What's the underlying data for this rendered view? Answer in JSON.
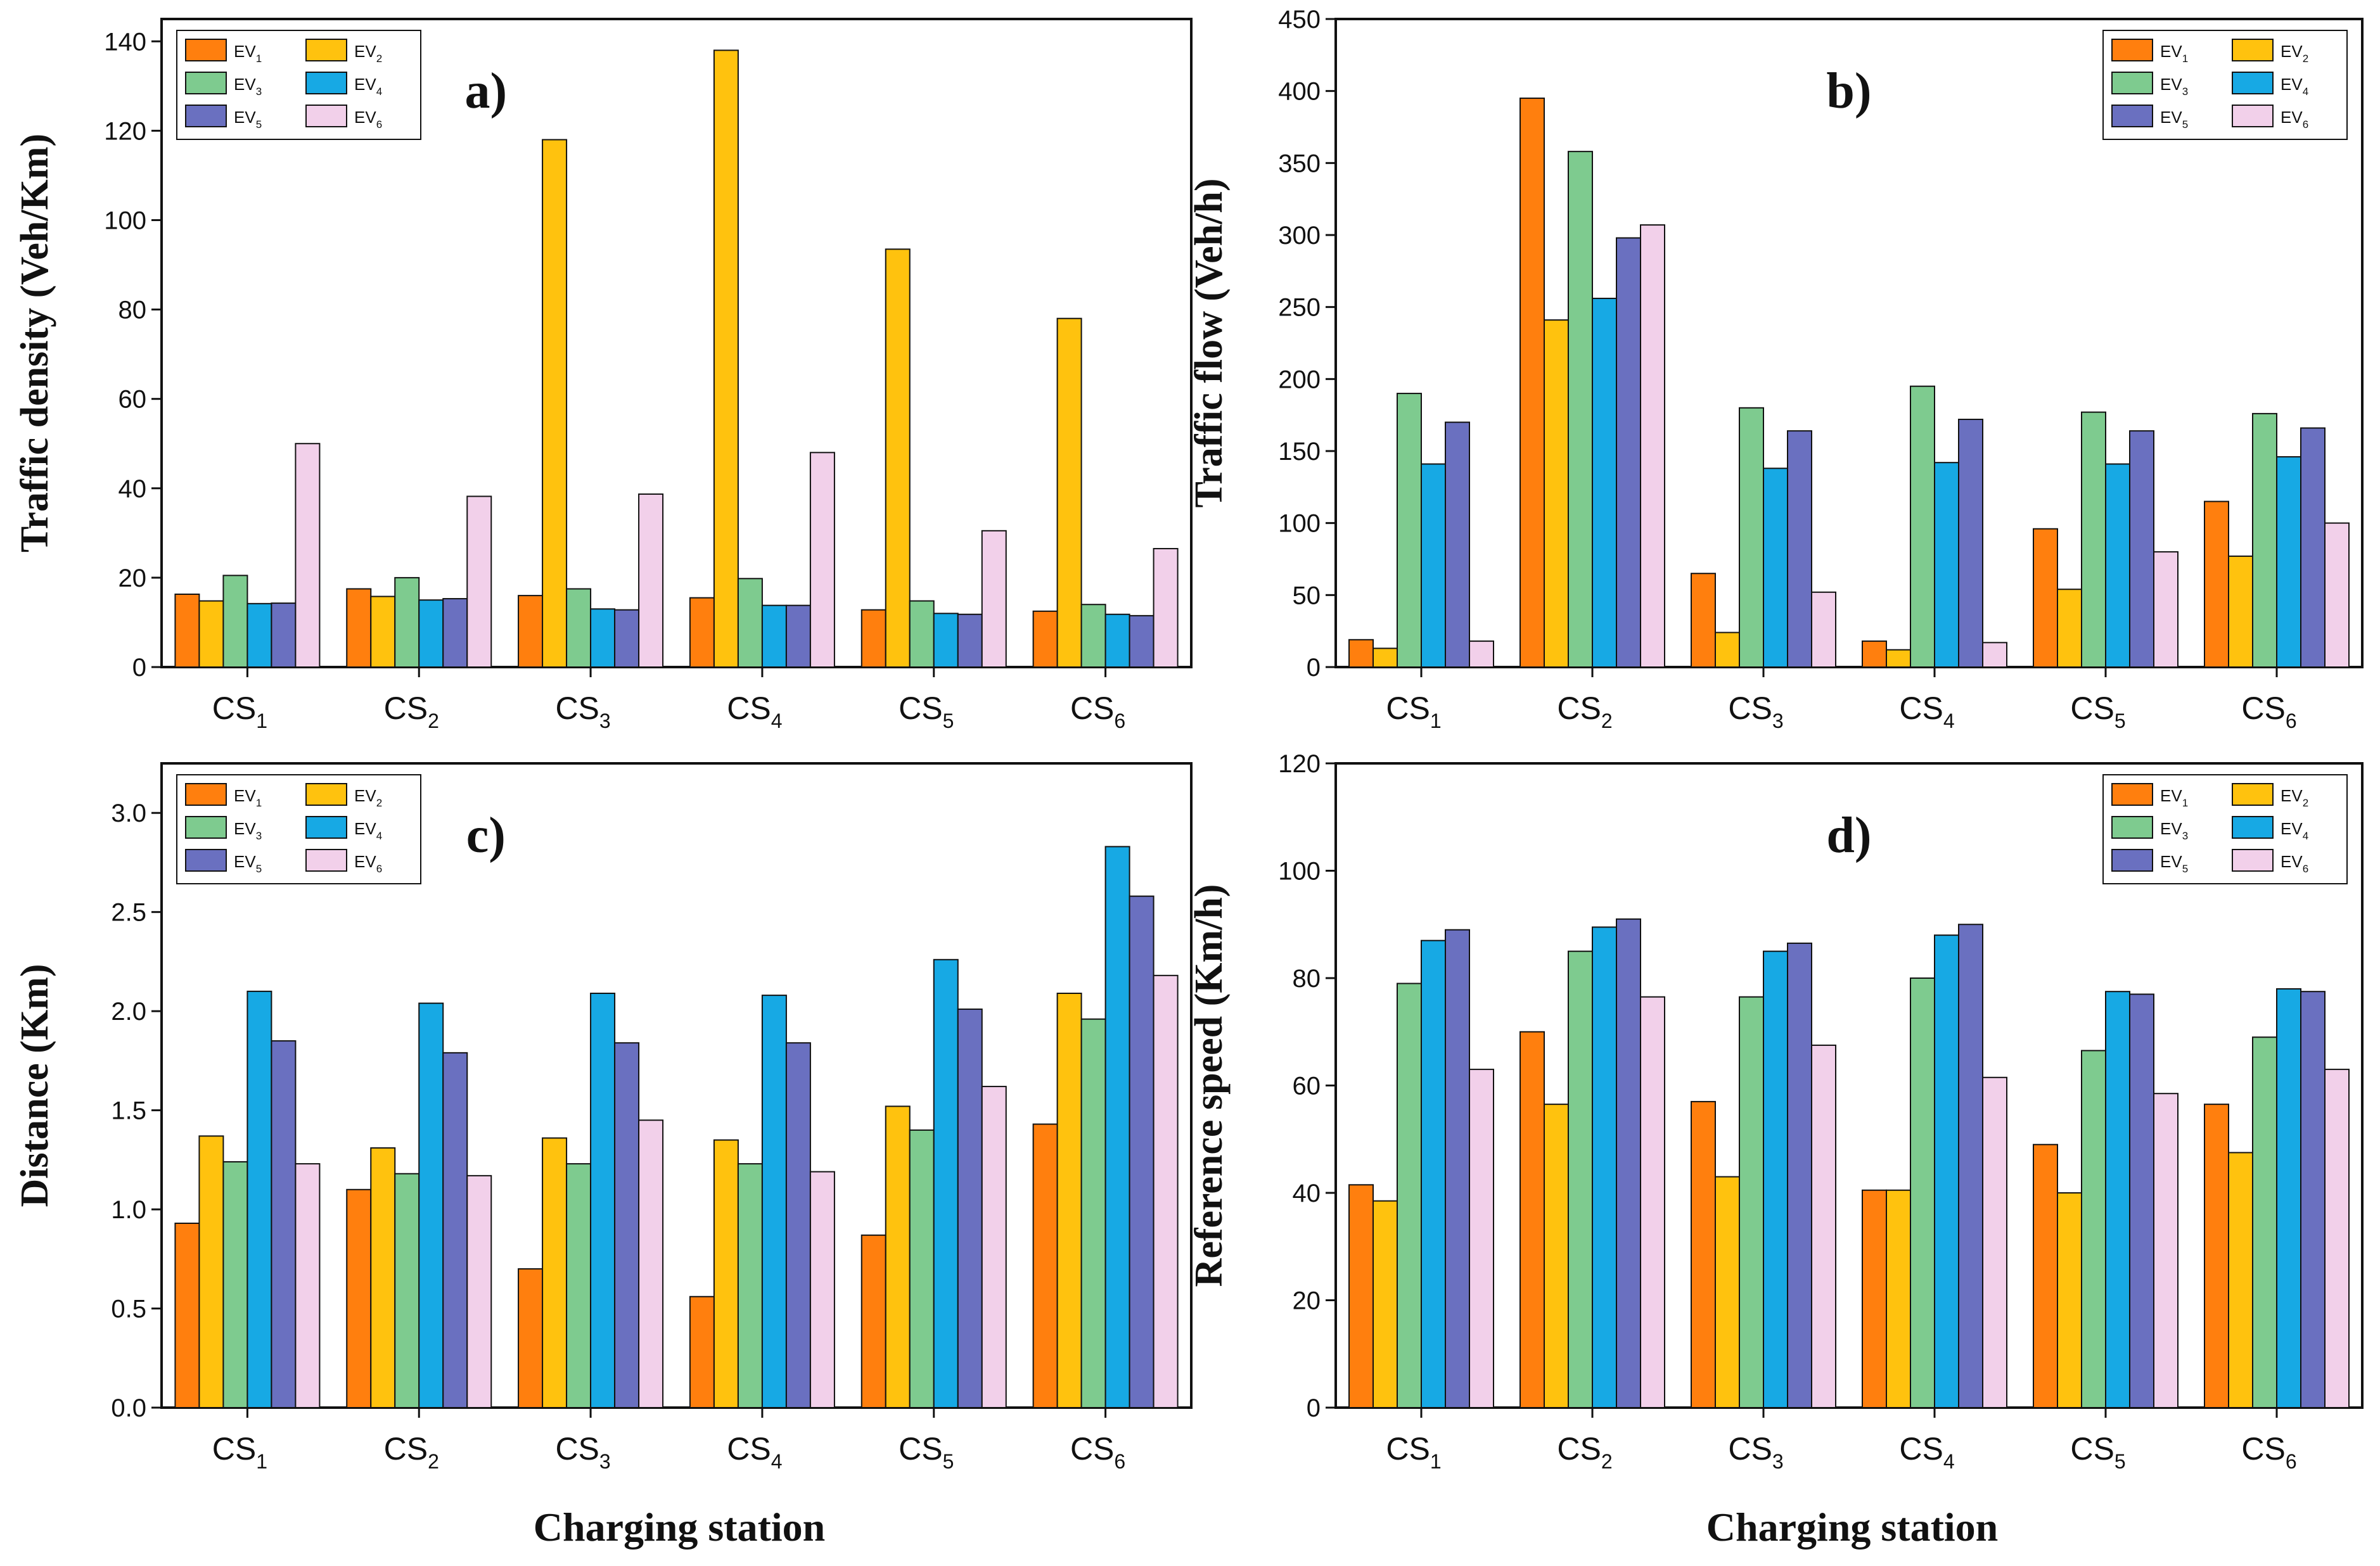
{
  "colors": {
    "EV1": "#ff7f0e",
    "EV2": "#ffc20e",
    "EV3": "#7ecb8f",
    "EV4": "#17a9e4",
    "EV5": "#6a70c0",
    "EV6": "#f2d0ea"
  },
  "x_axis_title": "Charging station",
  "chart_data": [
    {
      "type": "bar",
      "panel": "a)",
      "ylabel": "Traffic density (Veh/Km)",
      "ylim": [
        0,
        145
      ],
      "yticks": [
        0,
        20,
        40,
        60,
        80,
        100,
        120,
        140
      ],
      "ytick_labels": [
        "0",
        "20",
        "40",
        "60",
        "80",
        "100",
        "120",
        "140"
      ],
      "legend_position": "top-left",
      "categories": [
        {
          "base": "CS",
          "sub": "1"
        },
        {
          "base": "CS",
          "sub": "2"
        },
        {
          "base": "CS",
          "sub": "3"
        },
        {
          "base": "CS",
          "sub": "4"
        },
        {
          "base": "CS",
          "sub": "5"
        },
        {
          "base": "CS",
          "sub": "6"
        }
      ],
      "series": [
        {
          "key": "EV1",
          "base": "EV",
          "sub": "1",
          "values": [
            16.3,
            17.5,
            16.0,
            15.5,
            12.8,
            12.5
          ]
        },
        {
          "key": "EV2",
          "base": "EV",
          "sub": "2",
          "values": [
            14.8,
            15.8,
            118.0,
            138.0,
            93.5,
            78.0
          ]
        },
        {
          "key": "EV3",
          "base": "EV",
          "sub": "3",
          "values": [
            20.5,
            20.0,
            17.5,
            19.8,
            14.8,
            14.0
          ]
        },
        {
          "key": "EV4",
          "base": "EV",
          "sub": "4",
          "values": [
            14.2,
            15.0,
            13.0,
            13.8,
            12.0,
            11.8
          ]
        },
        {
          "key": "EV5",
          "base": "EV",
          "sub": "5",
          "values": [
            14.3,
            15.3,
            12.8,
            13.8,
            11.8,
            11.5
          ]
        },
        {
          "key": "EV6",
          "base": "EV",
          "sub": "6",
          "values": [
            50.0,
            38.2,
            38.7,
            48.0,
            30.5,
            26.5
          ]
        }
      ]
    },
    {
      "type": "bar",
      "panel": "b)",
      "ylabel": "Traffic flow (Veh/h)",
      "ylim": [
        0,
        450
      ],
      "yticks": [
        0,
        50,
        100,
        150,
        200,
        250,
        300,
        350,
        400,
        450
      ],
      "ytick_labels": [
        "0",
        "50",
        "100",
        "150",
        "200",
        "250",
        "300",
        "350",
        "400",
        "450"
      ],
      "legend_position": "top-right",
      "categories": [
        {
          "base": "CS",
          "sub": "1"
        },
        {
          "base": "CS",
          "sub": "2"
        },
        {
          "base": "CS",
          "sub": "3"
        },
        {
          "base": "CS",
          "sub": "4"
        },
        {
          "base": "CS",
          "sub": "5"
        },
        {
          "base": "CS",
          "sub": "6"
        }
      ],
      "series": [
        {
          "key": "EV1",
          "base": "EV",
          "sub": "1",
          "values": [
            19,
            395,
            65,
            18,
            96,
            115
          ]
        },
        {
          "key": "EV2",
          "base": "EV",
          "sub": "2",
          "values": [
            13,
            241,
            24,
            12,
            54,
            77
          ]
        },
        {
          "key": "EV3",
          "base": "EV",
          "sub": "3",
          "values": [
            190,
            358,
            180,
            195,
            177,
            176
          ]
        },
        {
          "key": "EV4",
          "base": "EV",
          "sub": "4",
          "values": [
            141,
            256,
            138,
            142,
            141,
            146
          ]
        },
        {
          "key": "EV5",
          "base": "EV",
          "sub": "5",
          "values": [
            170,
            298,
            164,
            172,
            164,
            166
          ]
        },
        {
          "key": "EV6",
          "base": "EV",
          "sub": "6",
          "values": [
            18,
            307,
            52,
            17,
            80,
            100
          ]
        }
      ]
    },
    {
      "type": "bar",
      "panel": "c)",
      "ylabel": "Distance (Km)",
      "ylim": [
        0,
        3.25
      ],
      "yticks": [
        0,
        0.5,
        1.0,
        1.5,
        2.0,
        2.5,
        3.0
      ],
      "ytick_labels": [
        "0.0",
        "0.5",
        "1.0",
        "1.5",
        "2.0",
        "2.5",
        "3.0"
      ],
      "legend_position": "top-left",
      "categories": [
        {
          "base": "CS",
          "sub": "1"
        },
        {
          "base": "CS",
          "sub": "2"
        },
        {
          "base": "CS",
          "sub": "3"
        },
        {
          "base": "CS",
          "sub": "4"
        },
        {
          "base": "CS",
          "sub": "5"
        },
        {
          "base": "CS",
          "sub": "6"
        }
      ],
      "series": [
        {
          "key": "EV1",
          "base": "EV",
          "sub": "1",
          "values": [
            0.93,
            1.1,
            0.7,
            0.56,
            0.87,
            1.43
          ]
        },
        {
          "key": "EV2",
          "base": "EV",
          "sub": "2",
          "values": [
            1.37,
            1.31,
            1.36,
            1.35,
            1.52,
            2.09
          ]
        },
        {
          "key": "EV3",
          "base": "EV",
          "sub": "3",
          "values": [
            1.24,
            1.18,
            1.23,
            1.23,
            1.4,
            1.96
          ]
        },
        {
          "key": "EV4",
          "base": "EV",
          "sub": "4",
          "values": [
            2.1,
            2.04,
            2.09,
            2.08,
            2.26,
            2.83
          ]
        },
        {
          "key": "EV5",
          "base": "EV",
          "sub": "5",
          "values": [
            1.85,
            1.79,
            1.84,
            1.84,
            2.01,
            2.58
          ]
        },
        {
          "key": "EV6",
          "base": "EV",
          "sub": "6",
          "values": [
            1.23,
            1.17,
            1.45,
            1.19,
            1.62,
            2.18
          ]
        }
      ]
    },
    {
      "type": "bar",
      "panel": "d)",
      "ylabel": "Reference speed (Km/h)",
      "ylim": [
        0,
        120
      ],
      "yticks": [
        0,
        20,
        40,
        60,
        80,
        100,
        120
      ],
      "ytick_labels": [
        "0",
        "20",
        "40",
        "60",
        "80",
        "100",
        "120"
      ],
      "legend_position": "top-right",
      "categories": [
        {
          "base": "CS",
          "sub": "1"
        },
        {
          "base": "CS",
          "sub": "2"
        },
        {
          "base": "CS",
          "sub": "3"
        },
        {
          "base": "CS",
          "sub": "4"
        },
        {
          "base": "CS",
          "sub": "5"
        },
        {
          "base": "CS",
          "sub": "6"
        }
      ],
      "series": [
        {
          "key": "EV1",
          "base": "EV",
          "sub": "1",
          "values": [
            41.5,
            70.0,
            57.0,
            40.5,
            49.0,
            56.5
          ]
        },
        {
          "key": "EV2",
          "base": "EV",
          "sub": "2",
          "values": [
            38.5,
            56.5,
            43.0,
            40.5,
            40.0,
            47.5
          ]
        },
        {
          "key": "EV3",
          "base": "EV",
          "sub": "3",
          "values": [
            79.0,
            85.0,
            76.5,
            80.0,
            66.5,
            69.0
          ]
        },
        {
          "key": "EV4",
          "base": "EV",
          "sub": "4",
          "values": [
            87.0,
            89.5,
            85.0,
            88.0,
            77.5,
            78.0
          ]
        },
        {
          "key": "EV5",
          "base": "EV",
          "sub": "5",
          "values": [
            89.0,
            91.0,
            86.5,
            90.0,
            77.0,
            77.5
          ]
        },
        {
          "key": "EV6",
          "base": "EV",
          "sub": "6",
          "values": [
            63.0,
            76.5,
            67.5,
            61.5,
            58.5,
            63.0
          ]
        }
      ]
    }
  ]
}
